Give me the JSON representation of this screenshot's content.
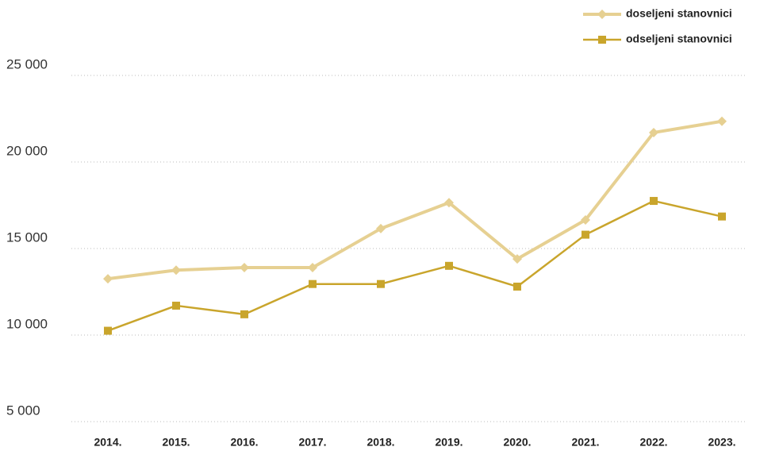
{
  "chart_data": {
    "type": "line",
    "categories": [
      "2014.",
      "2015.",
      "2016.",
      "2017.",
      "2018.",
      "2019.",
      "2020.",
      "2021.",
      "2022.",
      "2023."
    ],
    "series": [
      {
        "name": "doseljeni stanovnici",
        "color": "#e6d092",
        "marker": "diamond",
        "values": [
          13250,
          13750,
          13900,
          13900,
          16150,
          17650,
          14400,
          16650,
          21700,
          22350
        ]
      },
      {
        "name": "odseljeni stanovnici",
        "color": "#c9a52c",
        "marker": "square",
        "values": [
          10250,
          11700,
          11200,
          12950,
          12950,
          14000,
          12800,
          15800,
          17750,
          16850
        ]
      }
    ],
    "ylim": [
      5000,
      25000
    ],
    "yticks": [
      {
        "value": 5000,
        "label": "5 000"
      },
      {
        "value": 10000,
        "label": "10 000"
      },
      {
        "value": 15000,
        "label": "15 000"
      },
      {
        "value": 20000,
        "label": "20 000"
      },
      {
        "value": 25000,
        "label": "25 000"
      }
    ],
    "grid": true,
    "legend": "top-right"
  }
}
